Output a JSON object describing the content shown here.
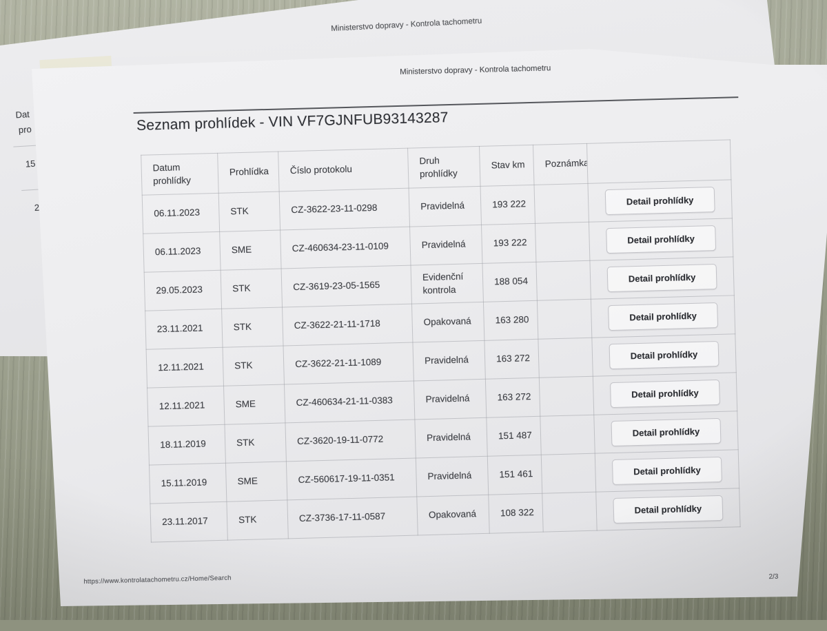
{
  "photo": {
    "description": "printout pages on floor",
    "colors": {
      "floor_base": "#9da190",
      "floor_dark": "#7e8270",
      "paper_front": "#efeff1",
      "paper_back": "#e6e6e9",
      "text": "#3d3f44",
      "table_border": "#b4b6bc",
      "button_border": "#c3c3c8"
    }
  },
  "back_sheet": {
    "header_text": "Ministerstvo dopravy - Kontrola tachometru",
    "fragments": [
      "Dat",
      "pro",
      "15",
      "2"
    ]
  },
  "front_sheet": {
    "header_text": "Ministerstvo dopravy - Kontrola tachometru",
    "title": "Seznam prohlídek - VIN VF7GJNFUB93143287",
    "table": {
      "columns": [
        "Datum prohlídky",
        "Prohlídka",
        "Číslo protokolu",
        "Druh prohlídky",
        "Stav km",
        "Poznámka"
      ],
      "button_label": "Detail prohlídky",
      "rows": [
        {
          "datum": "06.11.2023",
          "prohlidka": "STK",
          "protokol": "CZ-3622-23-11-0298",
          "druh": "Pravidelná",
          "stav_km": "193 222",
          "poznamka": ""
        },
        {
          "datum": "06.11.2023",
          "prohlidka": "SME",
          "protokol": "CZ-460634-23-11-0109",
          "druh": "Pravidelná",
          "stav_km": "193 222",
          "poznamka": ""
        },
        {
          "datum": "29.05.2023",
          "prohlidka": "STK",
          "protokol": "CZ-3619-23-05-1565",
          "druh": "Evidenční kontrola",
          "stav_km": "188 054",
          "poznamka": ""
        },
        {
          "datum": "23.11.2021",
          "prohlidka": "STK",
          "protokol": "CZ-3622-21-11-1718",
          "druh": "Opakovaná",
          "stav_km": "163 280",
          "poznamka": ""
        },
        {
          "datum": "12.11.2021",
          "prohlidka": "STK",
          "protokol": "CZ-3622-21-11-1089",
          "druh": "Pravidelná",
          "stav_km": "163 272",
          "poznamka": ""
        },
        {
          "datum": "12.11.2021",
          "prohlidka": "SME",
          "protokol": "CZ-460634-21-11-0383",
          "druh": "Pravidelná",
          "stav_km": "163 272",
          "poznamka": ""
        },
        {
          "datum": "18.11.2019",
          "prohlidka": "STK",
          "protokol": "CZ-3620-19-11-0772",
          "druh": "Pravidelná",
          "stav_km": "151 487",
          "poznamka": ""
        },
        {
          "datum": "15.11.2019",
          "prohlidka": "SME",
          "protokol": "CZ-560617-19-11-0351",
          "druh": "Pravidelná",
          "stav_km": "151 461",
          "poznamka": ""
        },
        {
          "datum": "23.11.2017",
          "prohlidka": "STK",
          "protokol": "CZ-3736-17-11-0587",
          "druh": "Opakovaná",
          "stav_km": "108 322",
          "poznamka": ""
        }
      ]
    },
    "footer_url": "https://www.kontrolatachometru.cz/Home/Search",
    "page_indicator": "2/3"
  }
}
